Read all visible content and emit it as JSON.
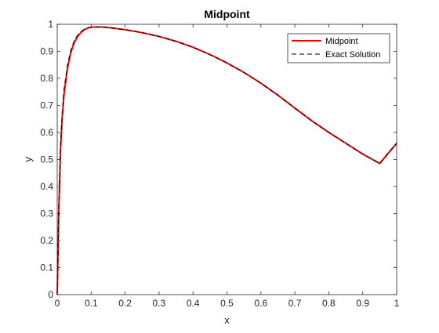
{
  "chart_data": {
    "type": "line",
    "title": "Midpoint",
    "xlabel": "x",
    "ylabel": "y",
    "xlim": [
      0,
      1
    ],
    "ylim": [
      0,
      1
    ],
    "x_ticks": [
      "0",
      "0.1",
      "0.2",
      "0.3",
      "0.4",
      "0.5",
      "0.6",
      "0.7",
      "0.8",
      "0.9",
      "1"
    ],
    "y_ticks": [
      "0",
      "0.1",
      "0.2",
      "0.3",
      "0.4",
      "0.5",
      "0.6",
      "0.7",
      "0.8",
      "0.9",
      "1"
    ],
    "grid": false,
    "legend_position": "top-right",
    "series": [
      {
        "name": "Midpoint",
        "color": "#ff0000",
        "style": "solid",
        "x": [
          0,
          0.005,
          0.01,
          0.015,
          0.02,
          0.03,
          0.04,
          0.05,
          0.06,
          0.07,
          0.08,
          0.09,
          0.1,
          0.11,
          0.12,
          0.13,
          0.15,
          0.2,
          0.25,
          0.3,
          0.35,
          0.4,
          0.45,
          0.5,
          0.55,
          0.6,
          0.65,
          0.7,
          0.75,
          0.8,
          0.85,
          0.9,
          0.95,
          1.0
        ],
        "y": [
          0,
          0.33,
          0.54,
          0.66,
          0.74,
          0.835,
          0.895,
          0.932,
          0.955,
          0.97,
          0.98,
          0.986,
          0.989,
          0.99,
          0.99,
          0.99,
          0.988,
          0.98,
          0.969,
          0.955,
          0.937,
          0.915,
          0.888,
          0.857,
          0.822,
          0.782,
          0.738,
          0.69,
          0.643,
          0.6,
          0.56,
          0.52,
          0.485,
          0.56
        ]
      },
      {
        "name": "Exact Solution",
        "color": "#000000",
        "style": "dashed",
        "x": [
          0,
          0.005,
          0.01,
          0.015,
          0.02,
          0.03,
          0.04,
          0.05,
          0.06,
          0.07,
          0.08,
          0.09,
          0.1,
          0.11,
          0.12,
          0.13,
          0.15,
          0.2,
          0.25,
          0.3,
          0.35,
          0.4,
          0.45,
          0.5,
          0.55,
          0.6,
          0.65,
          0.7,
          0.75,
          0.8,
          0.85,
          0.9,
          0.95,
          1.0
        ],
        "y": [
          0,
          0.35,
          0.56,
          0.68,
          0.76,
          0.85,
          0.905,
          0.94,
          0.96,
          0.973,
          0.982,
          0.987,
          0.99,
          0.991,
          0.991,
          0.99,
          0.988,
          0.98,
          0.969,
          0.955,
          0.937,
          0.915,
          0.888,
          0.857,
          0.822,
          0.782,
          0.738,
          0.69,
          0.643,
          0.6,
          0.56,
          0.52,
          0.485,
          0.56
        ]
      }
    ]
  }
}
